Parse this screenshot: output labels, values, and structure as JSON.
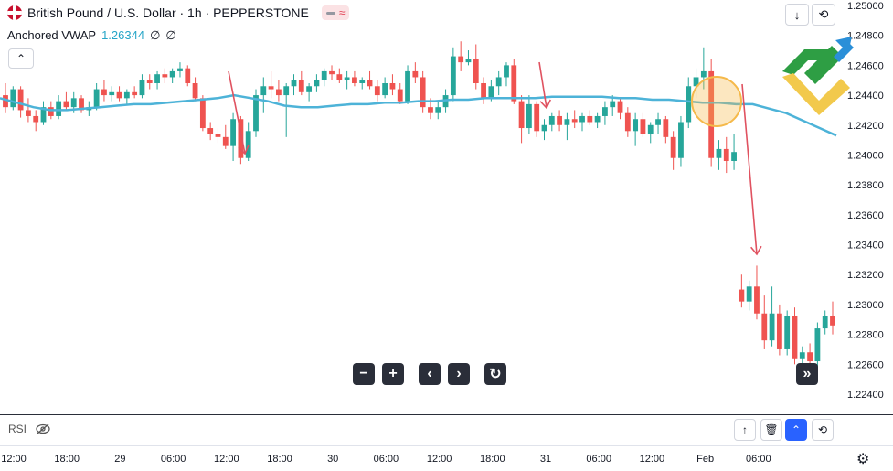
{
  "header": {
    "symbol_title": "British Pound / U.S. Dollar · 1h · PEPPERSTONE",
    "badge_symbol": "≈",
    "flag_icon": "uk-flag-icon"
  },
  "indicator": {
    "name": "Anchored VWAP",
    "value": "1.26344",
    "extra1": "∅",
    "extra2": "∅"
  },
  "controls": {
    "collapse": "⌃",
    "top_right": [
      "↓",
      "⟲"
    ],
    "nav": [
      "−",
      "+",
      "‹",
      "›",
      "↻"
    ],
    "scroll_right": "»"
  },
  "rsi_pane": {
    "label": "RSI",
    "eye_icon": "eye-off-icon",
    "buttons": [
      "↑",
      "🗑",
      "⌃",
      "⟲"
    ]
  },
  "colors": {
    "up": "#26a69a",
    "down": "#ef5350",
    "vwap": "#4db3d8",
    "annotation": "#e05260",
    "highlight": "#f5b94a"
  },
  "chart_data": {
    "type": "candlestick",
    "title": "British Pound / U.S. Dollar · 1h · PEPPERSTONE",
    "price_ticks": [
      "1.25000",
      "1.24800",
      "1.24600",
      "1.24400",
      "1.24200",
      "1.24000",
      "1.23800",
      "1.23600",
      "1.23400",
      "1.23200",
      "1.23000",
      "1.22800",
      "1.22600",
      "1.22400"
    ],
    "ylim": [
      1.2225,
      1.2507
    ],
    "time_ticks": [
      "12:00",
      "18:00",
      "29",
      "06:00",
      "12:00",
      "18:00",
      "30",
      "06:00",
      "12:00",
      "18:00",
      "31",
      "06:00",
      "12:00",
      "Feb",
      "06:00"
    ],
    "candles": [
      [
        1.244,
        1.2448,
        1.2428,
        1.2432
      ],
      [
        1.2432,
        1.2446,
        1.243,
        1.2444
      ],
      [
        1.2444,
        1.2446,
        1.2425,
        1.243
      ],
      [
        1.243,
        1.2438,
        1.2422,
        1.2426
      ],
      [
        1.2426,
        1.243,
        1.2416,
        1.2422
      ],
      [
        1.2422,
        1.2436,
        1.242,
        1.2432
      ],
      [
        1.2432,
        1.2436,
        1.2424,
        1.2426
      ],
      [
        1.2426,
        1.244,
        1.2424,
        1.2436
      ],
      [
        1.2436,
        1.2442,
        1.243,
        1.2432
      ],
      [
        1.2432,
        1.2442,
        1.2428,
        1.2438
      ],
      [
        1.2438,
        1.244,
        1.2428,
        1.243
      ],
      [
        1.243,
        1.2436,
        1.2426,
        1.2432
      ],
      [
        1.2432,
        1.2448,
        1.243,
        1.2444
      ],
      [
        1.2444,
        1.245,
        1.2436,
        1.244
      ],
      [
        1.244,
        1.2446,
        1.2436,
        1.2442
      ],
      [
        1.2442,
        1.2446,
        1.2436,
        1.2438
      ],
      [
        1.2438,
        1.2444,
        1.2434,
        1.2442
      ],
      [
        1.2442,
        1.2446,
        1.2438,
        1.244
      ],
      [
        1.244,
        1.2454,
        1.2438,
        1.245
      ],
      [
        1.245,
        1.2454,
        1.2444,
        1.2448
      ],
      [
        1.2448,
        1.2456,
        1.2444,
        1.2454
      ],
      [
        1.2454,
        1.2458,
        1.2448,
        1.2452
      ],
      [
        1.2452,
        1.2458,
        1.2448,
        1.2456
      ],
      [
        1.2456,
        1.2462,
        1.2452,
        1.2458
      ],
      [
        1.2458,
        1.246,
        1.2446,
        1.2448
      ],
      [
        1.2448,
        1.2452,
        1.2436,
        1.2438
      ],
      [
        1.2438,
        1.244,
        1.2416,
        1.2418
      ],
      [
        1.2418,
        1.2422,
        1.241,
        1.2414
      ],
      [
        1.2414,
        1.2418,
        1.2408,
        1.2412
      ],
      [
        1.2412,
        1.242,
        1.2404,
        1.2406
      ],
      [
        1.2406,
        1.2428,
        1.2396,
        1.2424
      ],
      [
        1.2424,
        1.2426,
        1.2394,
        1.2398
      ],
      [
        1.2398,
        1.2422,
        1.2396,
        1.2416
      ],
      [
        1.2416,
        1.2444,
        1.2412,
        1.244
      ],
      [
        1.244,
        1.2452,
        1.2428,
        1.2446
      ],
      [
        1.2446,
        1.2456,
        1.2438,
        1.2444
      ],
      [
        1.2444,
        1.245,
        1.2436,
        1.244
      ],
      [
        1.244,
        1.2448,
        1.2412,
        1.2446
      ],
      [
        1.2446,
        1.2454,
        1.244,
        1.245
      ],
      [
        1.245,
        1.2456,
        1.244,
        1.2442
      ],
      [
        1.2442,
        1.2448,
        1.2436,
        1.2446
      ],
      [
        1.2446,
        1.2454,
        1.2442,
        1.245
      ],
      [
        1.245,
        1.2458,
        1.2446,
        1.2456
      ],
      [
        1.2456,
        1.246,
        1.245,
        1.2454
      ],
      [
        1.2454,
        1.2458,
        1.2448,
        1.245
      ],
      [
        1.245,
        1.2456,
        1.2444,
        1.2452
      ],
      [
        1.2452,
        1.2456,
        1.2446,
        1.2448
      ],
      [
        1.2448,
        1.2452,
        1.2444,
        1.245
      ],
      [
        1.245,
        1.2456,
        1.2444,
        1.2446
      ],
      [
        1.2446,
        1.245,
        1.2436,
        1.244
      ],
      [
        1.244,
        1.2452,
        1.2438,
        1.2448
      ],
      [
        1.2448,
        1.2454,
        1.244,
        1.2444
      ],
      [
        1.2444,
        1.2448,
        1.2434,
        1.2436
      ],
      [
        1.2436,
        1.246,
        1.2434,
        1.2456
      ],
      [
        1.2456,
        1.2462,
        1.2448,
        1.2452
      ],
      [
        1.2452,
        1.2456,
        1.2428,
        1.2432
      ],
      [
        1.2432,
        1.2438,
        1.2424,
        1.2428
      ],
      [
        1.2428,
        1.2436,
        1.2424,
        1.2432
      ],
      [
        1.2432,
        1.2444,
        1.2428,
        1.244
      ],
      [
        1.244,
        1.2472,
        1.2436,
        1.2466
      ],
      [
        1.2466,
        1.2476,
        1.2456,
        1.2462
      ],
      [
        1.2462,
        1.247,
        1.246,
        1.2464
      ],
      [
        1.2464,
        1.2474,
        1.2444,
        1.2448
      ],
      [
        1.2448,
        1.2452,
        1.2434,
        1.2438
      ],
      [
        1.2438,
        1.245,
        1.2436,
        1.2446
      ],
      [
        1.2446,
        1.2456,
        1.244,
        1.2452
      ],
      [
        1.2452,
        1.2462,
        1.2446,
        1.246
      ],
      [
        1.246,
        1.2464,
        1.2434,
        1.2436
      ],
      [
        1.2436,
        1.244,
        1.2408,
        1.2418
      ],
      [
        1.2418,
        1.244,
        1.2414,
        1.2434
      ],
      [
        1.2434,
        1.2436,
        1.2412,
        1.2416
      ],
      [
        1.2416,
        1.2424,
        1.241,
        1.242
      ],
      [
        1.242,
        1.2428,
        1.2416,
        1.2426
      ],
      [
        1.2426,
        1.243,
        1.2416,
        1.242
      ],
      [
        1.242,
        1.2428,
        1.241,
        1.2424
      ],
      [
        1.2424,
        1.243,
        1.2418,
        1.2422
      ],
      [
        1.2422,
        1.2428,
        1.2416,
        1.2426
      ],
      [
        1.2426,
        1.243,
        1.242,
        1.2422
      ],
      [
        1.2422,
        1.2428,
        1.2418,
        1.2426
      ],
      [
        1.2426,
        1.2436,
        1.242,
        1.2432
      ],
      [
        1.2432,
        1.244,
        1.2426,
        1.2436
      ],
      [
        1.2436,
        1.2438,
        1.2424,
        1.2428
      ],
      [
        1.2428,
        1.2432,
        1.2412,
        1.2416
      ],
      [
        1.2416,
        1.2428,
        1.2406,
        1.2424
      ],
      [
        1.2424,
        1.2428,
        1.2412,
        1.2414
      ],
      [
        1.2414,
        1.2422,
        1.2408,
        1.242
      ],
      [
        1.242,
        1.2428,
        1.2414,
        1.2424
      ],
      [
        1.2424,
        1.2426,
        1.2408,
        1.2412
      ],
      [
        1.2412,
        1.2416,
        1.239,
        1.2398
      ],
      [
        1.2398,
        1.2426,
        1.2392,
        1.2422
      ],
      [
        1.2422,
        1.2452,
        1.2418,
        1.2446
      ],
      [
        1.2446,
        1.2458,
        1.2438,
        1.2452
      ],
      [
        1.2452,
        1.2472,
        1.2444,
        1.2456
      ],
      [
        1.2456,
        1.2464,
        1.2392,
        1.2398
      ],
      [
        1.2398,
        1.241,
        1.239,
        1.2404
      ],
      [
        1.2404,
        1.2412,
        1.2388,
        1.2396
      ],
      [
        1.2396,
        1.2414,
        1.239,
        1.2402
      ],
      [
        1.231,
        1.232,
        1.2298,
        1.2302
      ],
      [
        1.2302,
        1.2316,
        1.2296,
        1.2312
      ],
      [
        1.2312,
        1.2326,
        1.229,
        1.2294
      ],
      [
        1.2294,
        1.2306,
        1.227,
        1.2276
      ],
      [
        1.2276,
        1.2312,
        1.2272,
        1.2294
      ],
      [
        1.2294,
        1.23,
        1.2266,
        1.227
      ],
      [
        1.227,
        1.2296,
        1.2266,
        1.2292
      ],
      [
        1.2292,
        1.2298,
        1.226,
        1.2264
      ],
      [
        1.2264,
        1.2272,
        1.2256,
        1.2268
      ],
      [
        1.2268,
        1.2274,
        1.2258,
        1.2262
      ],
      [
        1.2262,
        1.2288,
        1.2258,
        1.2284
      ],
      [
        1.2284,
        1.2296,
        1.228,
        1.2292
      ],
      [
        1.2292,
        1.2302,
        1.228,
        1.2286
      ]
    ],
    "vwap": [
      1.2438,
      1.2435,
      1.2432,
      1.243,
      1.243,
      1.2431,
      1.2432,
      1.2433,
      1.2434,
      1.2434,
      1.2435,
      1.2436,
      1.2437,
      1.2438,
      1.244,
      1.2438,
      1.2436,
      1.2433,
      1.2432,
      1.2432,
      1.2433,
      1.2434,
      1.2434,
      1.2435,
      1.2435,
      1.2436,
      1.2436,
      1.2437,
      1.2437,
      1.2438,
      1.2438,
      1.2438,
      1.2438,
      1.2439,
      1.2439,
      1.2439,
      1.2439,
      1.2438,
      1.2438,
      1.2437,
      1.2437,
      1.2436,
      1.2435,
      1.2435,
      1.2434,
      1.2434,
      1.2431,
      1.2428,
      1.2423,
      1.2418,
      1.2413
    ],
    "series": [
      {
        "name": "Anchored VWAP"
      }
    ]
  }
}
